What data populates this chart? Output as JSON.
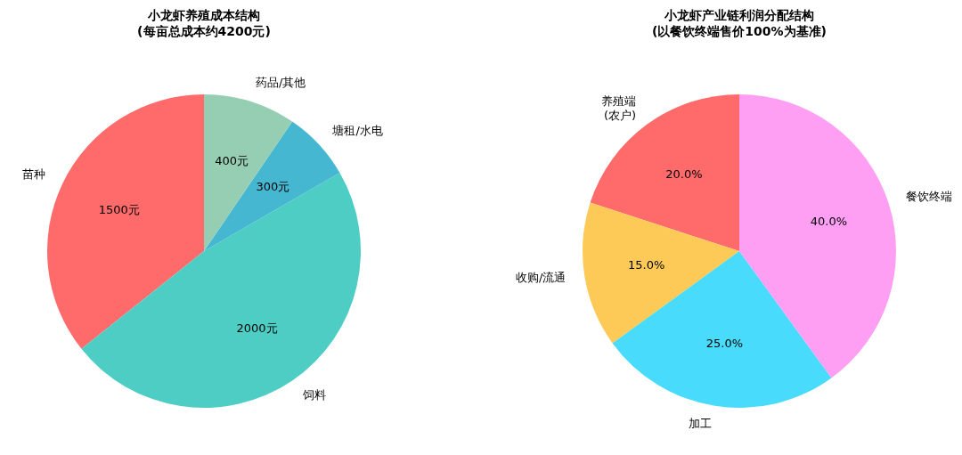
{
  "chart_data": [
    {
      "type": "pie",
      "title": "小龙虾养殖成本结构",
      "subtitle": "(每亩总成本约4200元)",
      "categories": [
        "苗种",
        "饲料",
        "塘租/水电",
        "药品/其他"
      ],
      "values": [
        1500,
        2000,
        300,
        400
      ],
      "colors": [
        "#ff6b6b",
        "#4ecdc4",
        "#45b7d1",
        "#96ceb4"
      ],
      "value_labels": [
        "1500元",
        "2000元",
        "300元",
        "400元"
      ]
    },
    {
      "type": "pie",
      "title": "小龙虾产业链利润分配结构",
      "subtitle": "(以餐饮终端售价100%为基准)",
      "categories": [
        "养殖端\n(农户)",
        "收购/流通",
        "加工",
        "餐饮终端"
      ],
      "values": [
        20,
        15,
        25,
        40
      ],
      "colors": [
        "#ff6b6b",
        "#feca57",
        "#48dbfb",
        "#ff9ff3"
      ],
      "value_labels": [
        "20.0%",
        "15.0%",
        "25.0%",
        "40.0%"
      ]
    }
  ]
}
